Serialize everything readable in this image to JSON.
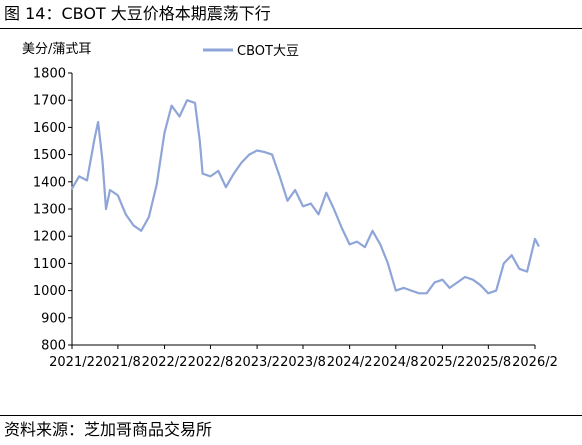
{
  "figure": {
    "title": "图 14：CBOT 大豆价格本期震荡下行",
    "source": "资料来源：芝加哥商品交易所"
  },
  "chart_data": {
    "type": "line",
    "ylabel": "美分/蒲式耳",
    "ylim": [
      800,
      1800
    ],
    "yticks": [
      800,
      900,
      1000,
      1100,
      1200,
      1300,
      1400,
      1500,
      1600,
      1700,
      1800
    ],
    "xlim": [
      "2021-02",
      "2026-02"
    ],
    "xticks": [
      "2021/2",
      "2021/8",
      "2022/2",
      "2022/8",
      "2023/2",
      "2023/8",
      "2024/2",
      "2024/8",
      "2025/2",
      "2025/8",
      "2026/2"
    ],
    "grid": false,
    "legend": "top",
    "series": [
      {
        "name": "CBOT大豆",
        "color": "#8fa5d8",
        "points": [
          [
            "2021-02",
            1375
          ],
          [
            "2021-03",
            1420
          ],
          [
            "2021-04",
            1405
          ],
          [
            "2021-05",
            1560
          ],
          [
            "2021-05-15",
            1620
          ],
          [
            "2021-06",
            1480
          ],
          [
            "2021-06-15",
            1300
          ],
          [
            "2021-07",
            1370
          ],
          [
            "2021-08",
            1350
          ],
          [
            "2021-09",
            1280
          ],
          [
            "2021-10",
            1240
          ],
          [
            "2021-11",
            1220
          ],
          [
            "2021-12",
            1270
          ],
          [
            "2022-01",
            1390
          ],
          [
            "2022-02",
            1580
          ],
          [
            "2022-03",
            1680
          ],
          [
            "2022-04",
            1640
          ],
          [
            "2022-05",
            1700
          ],
          [
            "2022-06",
            1690
          ],
          [
            "2022-06-20",
            1550
          ],
          [
            "2022-07",
            1430
          ],
          [
            "2022-08",
            1420
          ],
          [
            "2022-09",
            1440
          ],
          [
            "2022-10",
            1380
          ],
          [
            "2022-11",
            1430
          ],
          [
            "2022-12",
            1470
          ],
          [
            "2023-01",
            1500
          ],
          [
            "2023-02",
            1515
          ],
          [
            "2023-03",
            1510
          ],
          [
            "2023-04",
            1500
          ],
          [
            "2023-05",
            1420
          ],
          [
            "2023-06",
            1330
          ],
          [
            "2023-07",
            1370
          ],
          [
            "2023-08",
            1310
          ],
          [
            "2023-09",
            1320
          ],
          [
            "2023-10",
            1280
          ],
          [
            "2023-11",
            1360
          ],
          [
            "2023-12",
            1300
          ],
          [
            "2024-01",
            1230
          ],
          [
            "2024-02",
            1170
          ],
          [
            "2024-03",
            1180
          ],
          [
            "2024-04",
            1160
          ],
          [
            "2024-05",
            1220
          ],
          [
            "2024-06",
            1170
          ],
          [
            "2024-07",
            1100
          ],
          [
            "2024-08",
            1000
          ],
          [
            "2024-09",
            1010
          ],
          [
            "2024-10",
            1000
          ],
          [
            "2024-11",
            990
          ],
          [
            "2024-12",
            990
          ],
          [
            "2025-01",
            1030
          ],
          [
            "2025-02",
            1040
          ],
          [
            "2025-03",
            1010
          ],
          [
            "2025-04",
            1030
          ],
          [
            "2025-05",
            1050
          ],
          [
            "2025-06",
            1040
          ],
          [
            "2025-07",
            1020
          ],
          [
            "2025-08",
            990
          ],
          [
            "2025-09",
            1000
          ],
          [
            "2025-10",
            1100
          ],
          [
            "2025-11",
            1130
          ],
          [
            "2025-12",
            1080
          ],
          [
            "2026-01",
            1070
          ],
          [
            "2026-02",
            1190
          ],
          [
            "2026-02-15",
            1165
          ]
        ]
      }
    ]
  }
}
